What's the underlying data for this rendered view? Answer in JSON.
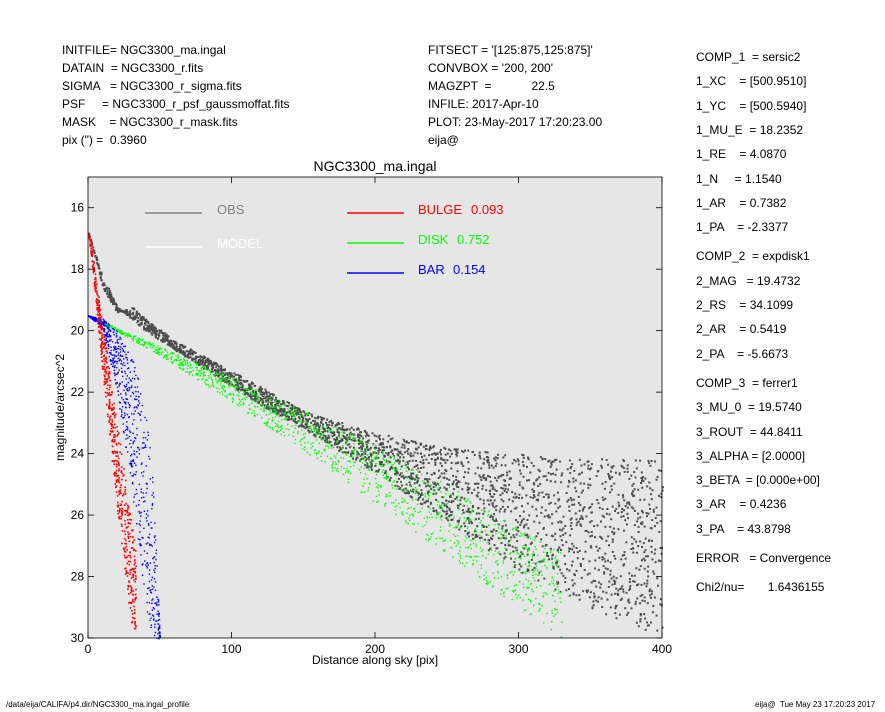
{
  "header_left": [
    "INITFILE= NGC3300_ma.ingal",
    "DATAIN  = NGC3300_r.fits",
    "SIGMA   = NGC3300_r_sigma.fits",
    "PSF     = NGC3300_r_psf_gaussmoffat.fits",
    "MASK    = NGC3300_r_mask.fits",
    "pix (\") =  0.3960"
  ],
  "header_mid": [
    "FITSECT = '[125:875,125:875]'",
    "CONVBOX = '200, 200'",
    "MAGZPT  =            22.5",
    "INFILE: 2017-Apr-10",
    "PLOT: 23-May-2017 17:20:23.00",
    "eija@"
  ],
  "params": [
    "COMP_1  = sersic2",
    "1_XC    = [500.9510]",
    "1_YC    = [500.5940]",
    "1_MU_E  = 18.2352",
    "1_RE    = 4.0870",
    "1_N     = 1.1540",
    "1_AR    = 0.7382",
    "1_PA    = -2.3377",
    "",
    "COMP_2  = expdisk1",
    "2_MAG   = 19.4732",
    "2_RS    = 34.1099",
    "2_AR    = 0.5419",
    "2_PA    = -5.6673",
    "",
    "COMP_3  = ferrer1",
    "3_MU_0  = 19.5740",
    "3_ROUT  = 44.8411",
    "3_ALPHA = [2.0000]",
    "3_BETA  = [0.000e+00]",
    "3_AR    = 0.4236",
    "3_PA    = 43.8798",
    "",
    "ERROR   = Convergence",
    "",
    "Chi2/nu=       1.6436155"
  ],
  "footer_left": "/data/eija/CALIFA/p4.dir/NGC3300_ma.ingal_profile",
  "footer_right": "eija@  Tue May 23 17:20:23 2017",
  "chart_data": {
    "type": "scatter",
    "title": "NGC3300_ma.ingal",
    "xlabel": "Distance along sky [pix]",
    "ylabel": "magnitude/arcsec^2",
    "xlim": [
      0,
      400
    ],
    "ylim": [
      30,
      15
    ],
    "y_inverted": true,
    "x_ticks": [
      0,
      100,
      200,
      300,
      400
    ],
    "y_ticks": [
      16,
      18,
      20,
      22,
      24,
      26,
      28,
      30
    ],
    "background": "#e6e6e6",
    "legend": [
      {
        "name": "OBS",
        "color": "#808080"
      },
      {
        "name": "MODEL",
        "color": "#ffffff"
      },
      {
        "name": "BULGE",
        "value": "0.093",
        "color": "#ff0000"
      },
      {
        "name": "DISK",
        "value": "0.752",
        "color": "#00ff00"
      },
      {
        "name": "BAR",
        "value": "0.154",
        "color": "#0000ff"
      }
    ],
    "series": [
      {
        "name": "OBS",
        "color": "#4d4d4d",
        "x": [
          0,
          10,
          20,
          30,
          40,
          60,
          80,
          100,
          120,
          150,
          200,
          250,
          300,
          350,
          400
        ],
        "y_low": [
          16.8,
          18.2,
          19.2,
          19.6,
          20.0,
          20.6,
          21.2,
          21.8,
          22.4,
          23.2,
          24.6,
          26.2,
          27.8,
          29.0,
          30.0
        ],
        "y_high": [
          16.8,
          18.6,
          19.4,
          19.2,
          19.6,
          20.3,
          20.8,
          21.3,
          21.8,
          22.6,
          23.3,
          23.8,
          24.0,
          24.1,
          24.2
        ]
      },
      {
        "name": "DISK",
        "color": "#00ff00",
        "x": [
          0,
          50,
          100,
          150,
          200,
          250,
          300,
          330
        ],
        "y_low": [
          19.5,
          20.8,
          22.3,
          23.9,
          25.6,
          27.3,
          29.0,
          30.0
        ],
        "y_high": [
          19.5,
          20.5,
          21.5,
          22.6,
          23.7,
          25.0,
          26.4,
          27.1
        ]
      },
      {
        "name": "BULGE",
        "color": "#ff0000",
        "x": [
          0,
          2,
          5,
          10,
          15,
          20,
          25,
          30,
          33
        ],
        "y_low": [
          16.8,
          17.6,
          19.0,
          21.4,
          23.6,
          25.8,
          27.8,
          29.6,
          30.0
        ],
        "y_high": [
          16.8,
          17.2,
          18.2,
          19.8,
          21.4,
          23.0,
          24.6,
          26.2,
          27.2
        ]
      },
      {
        "name": "BAR",
        "color": "#0000ff",
        "x": [
          0,
          10,
          20,
          30,
          35,
          40,
          45,
          50
        ],
        "y_low": [
          19.5,
          19.9,
          22.0,
          25.0,
          27.0,
          29.0,
          30.0,
          30.0
        ],
        "y_high": [
          19.5,
          19.6,
          20.0,
          20.8,
          21.5,
          22.6,
          24.8,
          30.0
        ]
      }
    ]
  }
}
